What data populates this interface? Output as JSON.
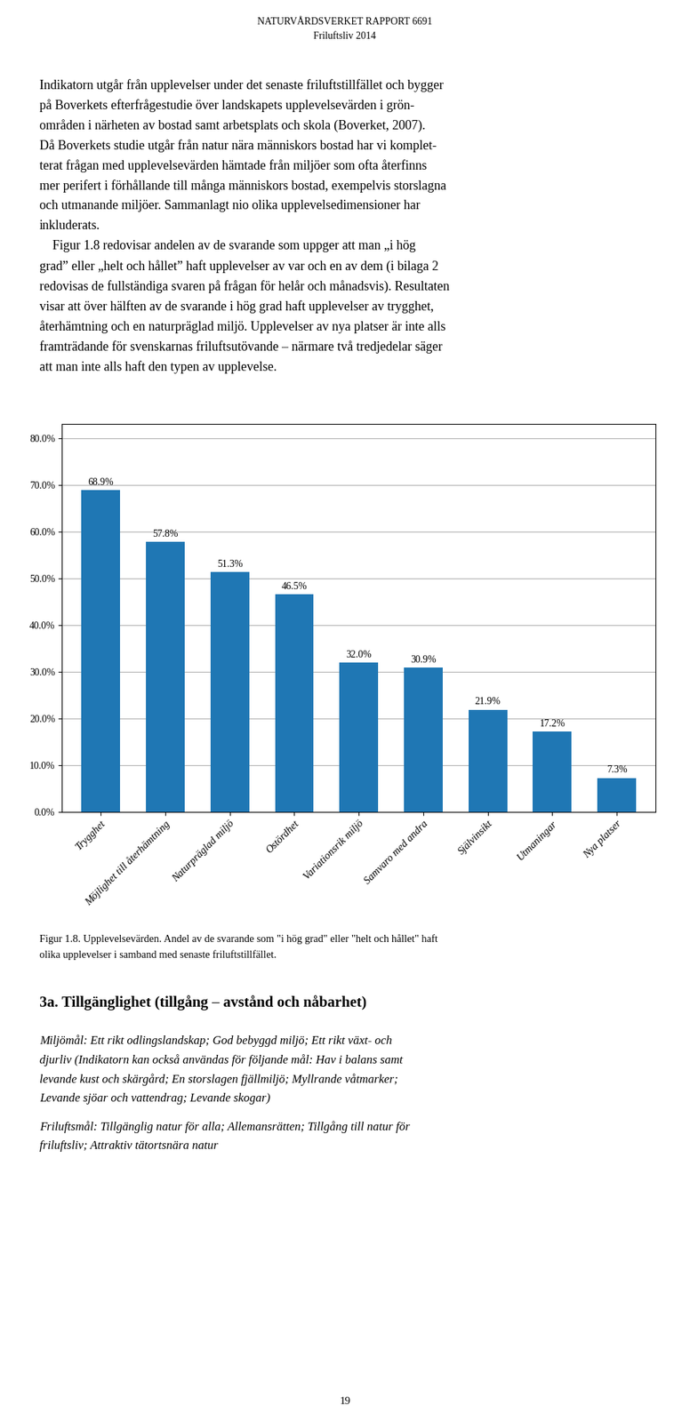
{
  "chart_data": {
    "type": "bar",
    "categories": [
      "Trygghet",
      "Möjlighet till återhämtning",
      "Naturpräglad miljö",
      "Ostördhet",
      "Variationsrik miljö",
      "Samvaro med andra",
      "Självinsikt",
      "Utmaningar",
      "Nya platser"
    ],
    "values": [
      68.9,
      57.8,
      51.3,
      46.5,
      32.0,
      30.9,
      21.9,
      17.2,
      7.3
    ],
    "value_labels": [
      "68.9%",
      "57.8%",
      "51.3%",
      "46.5%",
      "32.0%",
      "30.9%",
      "21.9%",
      "17.2%",
      "7.3%"
    ],
    "data_labels": true,
    "ylim": [
      0,
      83
    ],
    "yticks": [
      {
        "value": 0.0,
        "label": "0.0%"
      },
      {
        "value": 10.0,
        "label": "10.0%"
      },
      {
        "value": 20.0,
        "label": "20.0%"
      },
      {
        "value": 30.0,
        "label": "30.0%"
      },
      {
        "value": 40.0,
        "label": "40.0%"
      },
      {
        "value": 50.0,
        "label": "50.0%"
      },
      {
        "value": 60.0,
        "label": "60.0%"
      },
      {
        "value": 70.0,
        "label": "70.0%"
      },
      {
        "value": 80.0,
        "label": "80.0%"
      }
    ],
    "grid": true,
    "annotations": [
      [
        "NATURVÅRDSVERKET RAPPORT 6691",
        "Friluftsliv 2014"
      ],
      [
        "Indikatorn utgår från upplevelser under det senaste friluftstillfället och bygger",
        "på Boverkets efterfrågestudie över landskapets upplevelsevärden i grön-",
        "områden i närheten av bostad samt arbetsplats och skola (Boverket, 2007).",
        "Då Boverkets studie utgår från natur nära människors bostad har vi komplet-",
        "terat frågan med upplevelsevärden hämtade från miljöer som ofta återfinns",
        "mer perifert i förhållande till många människors bostad, exempelvis storslagna",
        "och utmanande miljöer. Sammanlagt nio olika upplevelsedimensioner har",
        "inkluderats."
      ],
      [
        "    Figur 1.8 redovisar andelen av de svarande som uppger att man „i hög",
        "grad” eller „helt och hållet” haft upplevelser av var och en av dem (i bilaga 2",
        "redovisas de fullständiga svaren på frågan för helår och månadsvis). Resultaten",
        "visar att över hälften av de svarande i hög grad haft upplevelser av trygghet,",
        "återhämtning och en naturpräglad miljö. Upplevelser av nya platser är inte alls",
        "framträdande för svenskarnas friluftsutövande – närmare två tredjedelar säger",
        "att man inte alls haft den typen av upplevelse."
      ],
      [
        "Figur 1.8. Upplevelsevärden. Andel av de svarande som \"i hög grad\" eller \"helt och hållet\" haft",
        "olika upplevelser i samband med senaste friluftstillfället."
      ],
      [
        "3a. Tillgänglighet (tillgång – avstånd och nåbarhet)"
      ],
      [
        "Miljömål: Ett rikt odlingslandskap; God bebyggd miljö; Ett rikt växt- och",
        "djurliv (Indikatorn kan också användas för följande mål: Hav i balans samt",
        "levande kust och skärgård; En storslagen fjällmiljö; Myllrande våtmarker;",
        "Levande sjöar och vattendrag; Levande skogar)"
      ],
      [
        "Friluftsmål: Tillgänglig natur för alla; Allemansrätten; Tillgång till natur för",
        "friluftsliv; Attraktiv tätortsnära natur"
      ],
      [
        "19"
      ]
    ]
  }
}
